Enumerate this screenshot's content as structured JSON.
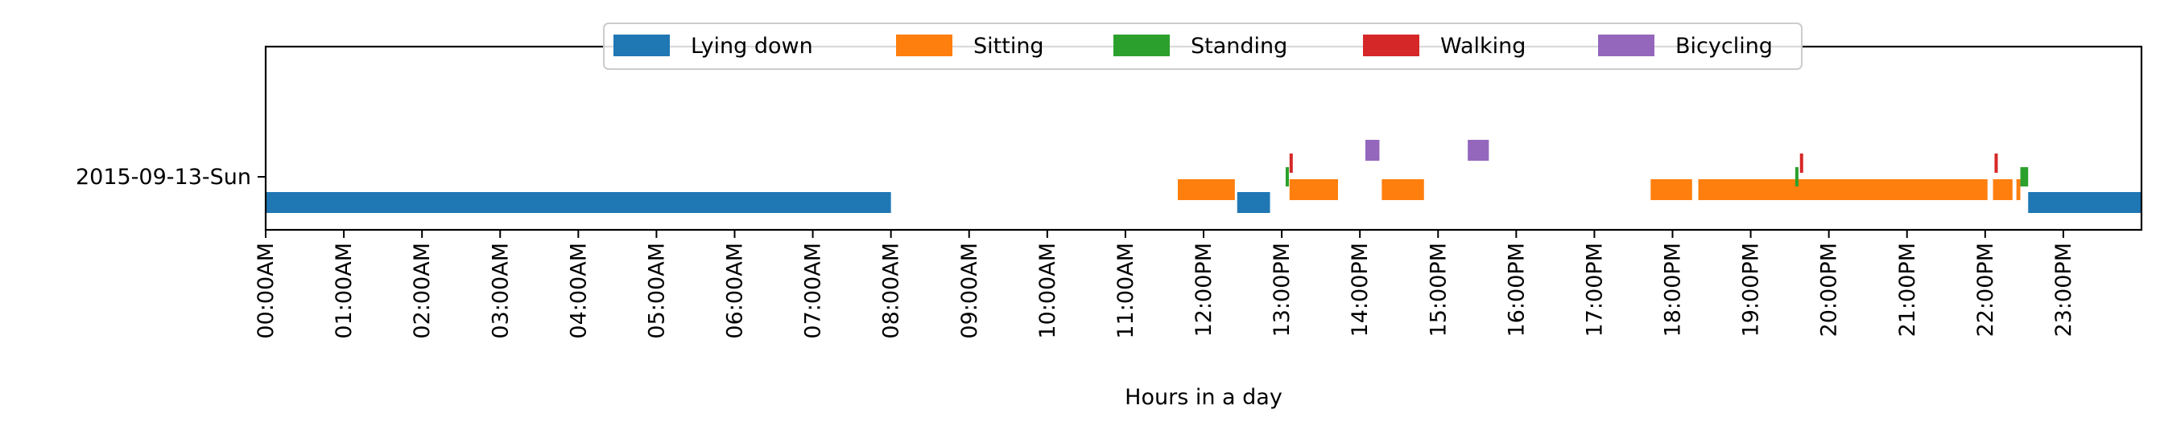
{
  "chart_data": {
    "type": "timeline",
    "title": "",
    "xlabel": "Hours in a day",
    "ylabel": "",
    "xlim": [
      0,
      24
    ],
    "x_unit": "hours",
    "grid": false,
    "legend_placement": "top-center",
    "row_label": "2015-09-13-Sun",
    "x_tick_labels": [
      "00:00AM",
      "01:00AM",
      "02:00AM",
      "03:00AM",
      "04:00AM",
      "05:00AM",
      "06:00AM",
      "07:00AM",
      "08:00AM",
      "09:00AM",
      "10:00AM",
      "11:00AM",
      "12:00PM",
      "13:00PM",
      "14:00PM",
      "15:00PM",
      "16:00PM",
      "17:00PM",
      "18:00PM",
      "19:00PM",
      "20:00PM",
      "21:00PM",
      "22:00PM",
      "23:00PM"
    ],
    "series": [
      {
        "name": "Lying down",
        "color": "#1f77b4",
        "intervals": [
          [
            0.0,
            8.0
          ],
          [
            12.43,
            12.85
          ],
          [
            22.55,
            24.0
          ]
        ]
      },
      {
        "name": "Sitting",
        "color": "#ff7f0e",
        "intervals": [
          [
            11.67,
            12.4
          ],
          [
            13.1,
            13.72
          ],
          [
            14.28,
            14.82
          ],
          [
            17.72,
            18.25
          ],
          [
            18.33,
            22.03
          ],
          [
            22.1,
            22.35
          ],
          [
            22.4,
            22.45
          ]
        ]
      },
      {
        "name": "Standing",
        "color": "#2ca02c",
        "intervals": [
          [
            13.05,
            13.08
          ],
          [
            19.57,
            19.6
          ],
          [
            22.45,
            22.55
          ]
        ]
      },
      {
        "name": "Walking",
        "color": "#d62728",
        "intervals": [
          [
            13.1,
            13.13
          ],
          [
            19.63,
            19.66
          ],
          [
            22.12,
            22.15
          ]
        ]
      },
      {
        "name": "Bicycling",
        "color": "#9467bd",
        "intervals": [
          [
            14.07,
            14.25
          ],
          [
            15.38,
            15.65
          ]
        ]
      }
    ]
  }
}
